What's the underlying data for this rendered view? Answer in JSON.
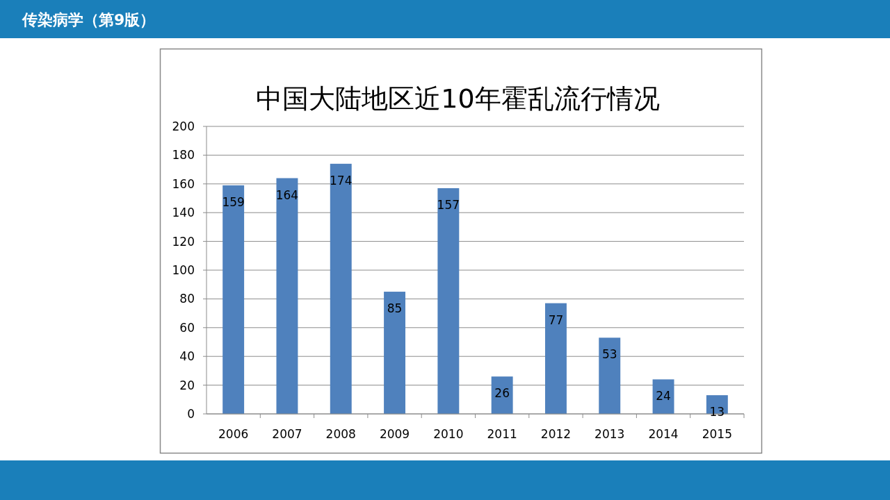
{
  "chart_data": {
    "type": "bar",
    "title": "中国大陆地区近10年霍乱流行情况",
    "annotations": [
      "传染病学（第9版）"
    ],
    "categories": [
      "2006",
      "2007",
      "2008",
      "2009",
      "2010",
      "2011",
      "2012",
      "2013",
      "2014",
      "2015"
    ],
    "values": [
      159,
      164,
      174,
      85,
      157,
      26,
      77,
      53,
      24,
      13
    ],
    "color": "#4f81bd",
    "ylim": [
      0,
      200
    ],
    "yticks": [
      0,
      20,
      40,
      60,
      80,
      100,
      120,
      140,
      160,
      180,
      200
    ],
    "grid": "y",
    "data_labels": true
  }
}
